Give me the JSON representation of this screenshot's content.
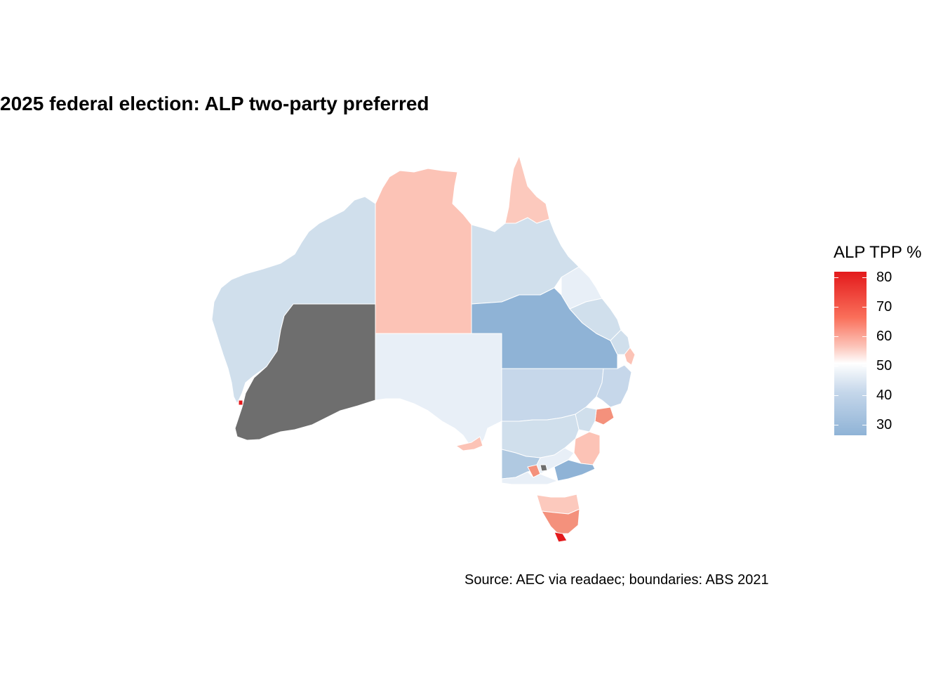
{
  "title": "2025 federal election: ALP two-party preferred",
  "caption": "Source: AEC via readaec; boundaries: ABS 2021",
  "legend": {
    "title": "ALP TPP %",
    "ticks": [
      "80",
      "70",
      "60",
      "50",
      "40",
      "30"
    ],
    "color_scale": {
      "low": "#8fb3d6",
      "mid": "#ffffff",
      "midpoint": 50,
      "high": "#e31a1c",
      "missing": "#6e6e6e"
    }
  },
  "regions": [
    {
      "name": "large-wa-north-division",
      "color": "#d0dfec"
    },
    {
      "name": "wa-no-data-division",
      "color": "#6e6e6e"
    },
    {
      "name": "nt-lingiari-division",
      "color": "#fcc3b6"
    },
    {
      "name": "sa-grey-division",
      "color": "#e8eff7"
    },
    {
      "name": "qld-far-north-division",
      "color": "#fcc9bd"
    },
    {
      "name": "qld-kennedy-division",
      "color": "#d0dfec"
    },
    {
      "name": "qld-maranoa-division",
      "color": "#8fb3d6"
    },
    {
      "name": "nsw-parkes-division",
      "color": "#c6d7ea"
    },
    {
      "name": "vic-mallee-division",
      "color": "#b0c9e1"
    },
    {
      "name": "tas-lyons-division",
      "color": "#f4917c"
    }
  ]
}
